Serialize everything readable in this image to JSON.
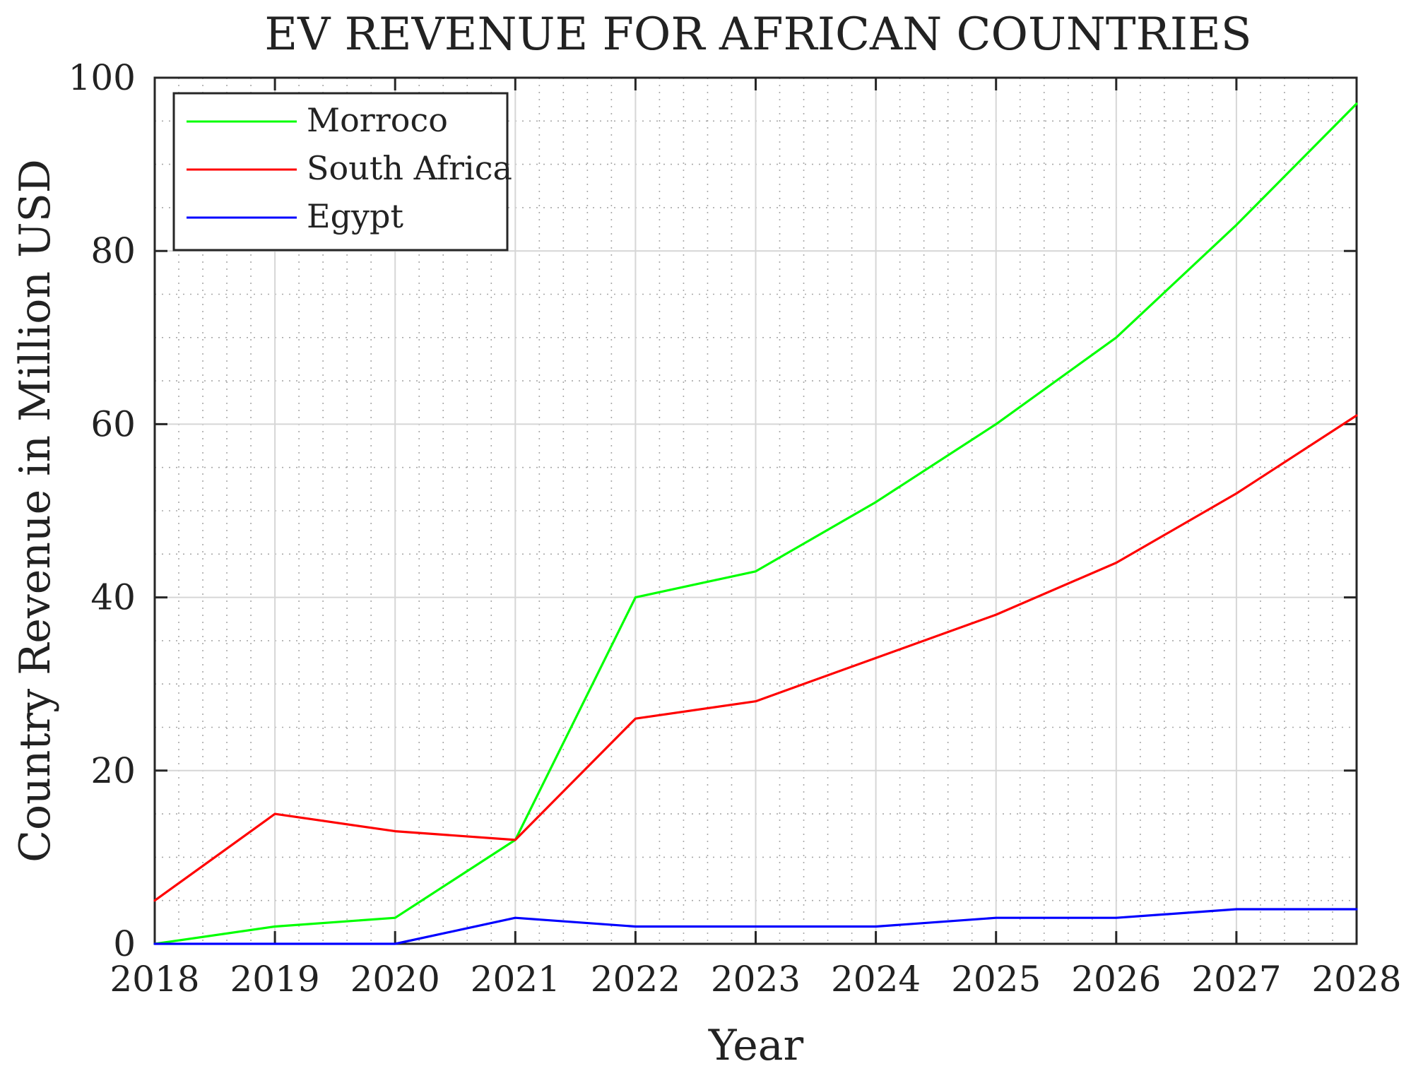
{
  "chart_data": {
    "type": "line",
    "title": "EV REVENUE FOR AFRICAN COUNTRIES",
    "xlabel": "Year",
    "ylabel": "Country Revenue in Million USD",
    "x": [
      2018,
      2019,
      2020,
      2021,
      2022,
      2023,
      2024,
      2025,
      2026,
      2027,
      2028
    ],
    "xlim": [
      2018,
      2028
    ],
    "ylim": [
      0,
      100
    ],
    "x_ticks": [
      2018,
      2019,
      2020,
      2021,
      2022,
      2023,
      2024,
      2025,
      2026,
      2027,
      2028
    ],
    "y_ticks": [
      0,
      20,
      40,
      60,
      80,
      100
    ],
    "grid": true,
    "minor_grid": true,
    "legend_position": "top-left",
    "series": [
      {
        "name": "Morroco",
        "color": "#00ff00",
        "values": [
          0,
          2,
          3,
          12,
          40,
          43,
          51,
          60,
          70,
          83,
          97
        ]
      },
      {
        "name": "South Africa",
        "color": "#ff0000",
        "values": [
          5,
          15,
          13,
          12,
          26,
          28,
          33,
          38,
          44,
          52,
          61
        ]
      },
      {
        "name": "Egypt",
        "color": "#0000ff",
        "values": [
          0,
          0,
          0,
          3,
          2,
          2,
          2,
          3,
          3,
          4,
          4
        ]
      }
    ]
  }
}
